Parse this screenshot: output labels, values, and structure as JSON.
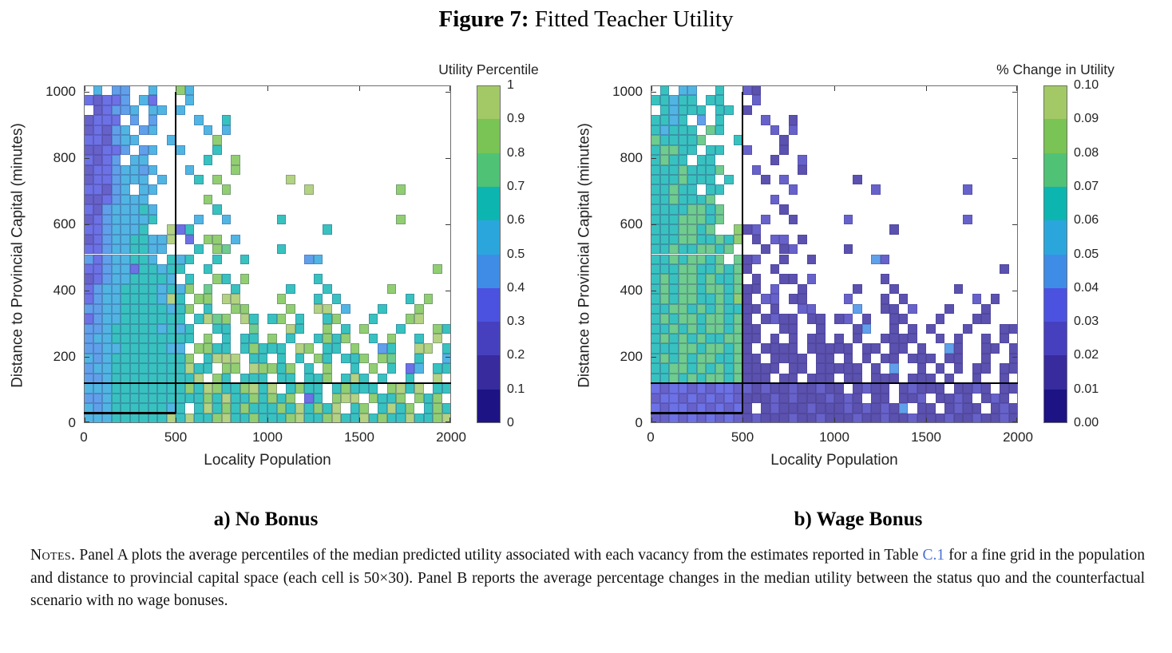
{
  "figure": {
    "label": "Figure 7:",
    "title": "Fitted Teacher Utility"
  },
  "palette": [
    "#1d1385",
    "#382b9e",
    "#4640bf",
    "#4c52e0",
    "#3e8ce6",
    "#2ba6dd",
    "#0db5b1",
    "#4fc276",
    "#79c454",
    "#a3c967"
  ],
  "notes": {
    "prefix": "Notes.",
    "part1": " Panel A plots the average percentiles of the median predicted utility associated with each vacancy from the estimates reported in Table ",
    "link": "C.1",
    "part2": " for a fine grid in the population and distance to provincial capital space (each cell is 50×30). Panel B reports the average percentage changes in the median utility between the status quo and the counterfactual scenario with no wage bonuses."
  },
  "chart_data": [
    {
      "type": "heatmap",
      "title": "a) No Bonus",
      "xlabel": "Locality Population",
      "ylabel": "Distance to Provincial Capital (minutes)",
      "colorbar_title": "Utility Percentile",
      "xlim": [
        0,
        2000
      ],
      "ylim": [
        0,
        1020
      ],
      "cell_size": [
        50,
        30
      ],
      "x_ticks": [
        "0",
        "500",
        "1000",
        "1500",
        "2000"
      ],
      "y_ticks": [
        "0",
        "200",
        "400",
        "600",
        "800",
        "1000"
      ],
      "colorbar_ticks": [
        "1",
        "0.9",
        "0.8",
        "0.7",
        "0.6",
        "0.5",
        "0.4",
        "0.3",
        "0.2",
        "0.1",
        "0"
      ],
      "bin_encoding": "rows are listed top (y=990-1020) to bottom (y=0-30); each char is one 50x30 cell; '.'=empty; digit d = color bin d, spanning utility percentile [d/10,(d+1)/10]",
      "overlay_lines": {
        "vline_x": 500,
        "vline_y": [
          30,
          1000
        ],
        "hstep_y": 30,
        "hstep_x": [
          0,
          500
        ],
        "hline_y": 120
      },
      "rows": [
        ".5.44..5..85............................",
        "32334.53...5............................",
        ".23445.55.5.............................",
        "2333.4.4....5..6........................",
        "23245.45.....5.5........................",
        "332455...5....8.........................",
        "22334.45..5...6.........................",
        "3234.55......6..8.......................",
        "23345545...5....8.......................",
        "2334555.5...6.8.......9.................",
        "33245.55.......8........9.........8.....",
        "2234555......8..........................",
        "32455565......6.........................",
        "23455556....5..5.....6............8.....",
        "3345556..936..............6.............",
        "2345566559.3.88.5.......................",
        "334556655...6.87.....6..................",
        "43455665.656..6..6......45..............",
        "33455366566..6........................8.",
        "2345566665.6..86.8.......6..............",
        "345566665658.7..6.....6...6......8......",
        "34556666596.88.99....8...6.6.......6.8..",
        "445566666568.6..88....8..99.5...6...8...",
        "34556666666.6978.96.68.6..68...6...89...",
        "445666665656..66..7...96..8.6.8...6...86",
        "455666666666.8.6.66.8.6..6868..6.8..6.9.",
        "44556666655.8866.68666.98.66.8..46..99.6",
        "545666666668.6999.66.6.6.86.668.87..6..5",
        "45566666666966.88.98868.6.8..6.8.6.35.66",
        "4456666666669.86.666.66.668.696.6..6..9.",
        "555666666668698668969.6866.68666.8969.66",
        "44566666666668696686868.36.899.8668.868.",
        "54566666656.6968686668696869.68.6968.686",
        "5556666669696689668666896689669686696689"
      ]
    },
    {
      "type": "heatmap",
      "title": "b) Wage Bonus",
      "xlabel": "Locality Population",
      "ylabel": "Distance to Provincial Capital (minutes)",
      "colorbar_title": "% Change in Utility",
      "xlim": [
        0,
        2000
      ],
      "ylim": [
        0,
        1020
      ],
      "cell_size": [
        50,
        30
      ],
      "x_ticks": [
        "0",
        "500",
        "1000",
        "1500",
        "2000"
      ],
      "y_ticks": [
        "0",
        "200",
        "400",
        "600",
        "800",
        "1000"
      ],
      "colorbar_ticks": [
        "0.10",
        "0.09",
        "0.08",
        "0.07",
        "0.06",
        "0.05",
        "0.04",
        "0.03",
        "0.02",
        "0.01",
        "0.00"
      ],
      "bin_encoding": "rows are listed top (y=990-1020) to bottom (y=0-30); each char is one 50x30 cell; '.'=empty; digit d = color bin d, spanning % change in utility [d/100,(d+1)/100]",
      "overlay_lines": {
        "vline_x": 500,
        "vline_y": [
          30,
          1000
        ],
        "hstep_y": 30,
        "hstep_x": [
          0,
          500
        ],
        "hline_y": 120
      },
      "rows": [
        ".6.55..6..21............................",
        "66566.66...2............................",
        ".65666.66.1.............................",
        "6656.4.6....2..1........................",
        "65666.76.....2.2........................",
        "766667...6....1.........................",
        "67766.66..2...1.........................",
        "6766.66......1..2.......................",
        "66676667...2....1.......................",
        "6667666.6...1.2.......1.................",
        "66766.66.......2........2.........2.....",
        "6676667......2..........................",
        "66667767......1.........................",
        "66677767....2..1.....2............2.....",
        "6667767..812..............1.............",
        "6667766768.1.22.1.......................",
        "667667767...1.12.....1..................",
        "66767767.712..1..1......42..............",
        "66677667671..1........................1.",
        "6767767667.1..11.2.......1..............",
        "676776776711.2..1.....1...1......1......",
        "67677667681.22.11....2...1.1.......2.1..",
        "667767676611.1..22....4..11.2...1...1...",
        "67677677671.1211.11.12.1..11...1...11...",
        "667676776711..11..1...14..1.1.1...1...11",
        "676767667711.1.1.11.1.1..1111..1.1..1.1.",
        "66677677671.1111.11111.11.11.1..41..11.1",
        "676767766711.1111.11.1.1.11.111.11..1..1",
        "66776767671111.11.11111.1.4..1.1.1.11.11",
        "6676767767111.11.111.11.111.111.1..1..1.",
        "323323233221211211211.1211.12111.1121.11",
        "23323232321112121112121.11.112.1121.121.",
        "32332323231.1211121112121214.11.1211.121",
        "2232323232121112112111211211211121121121"
      ]
    }
  ]
}
